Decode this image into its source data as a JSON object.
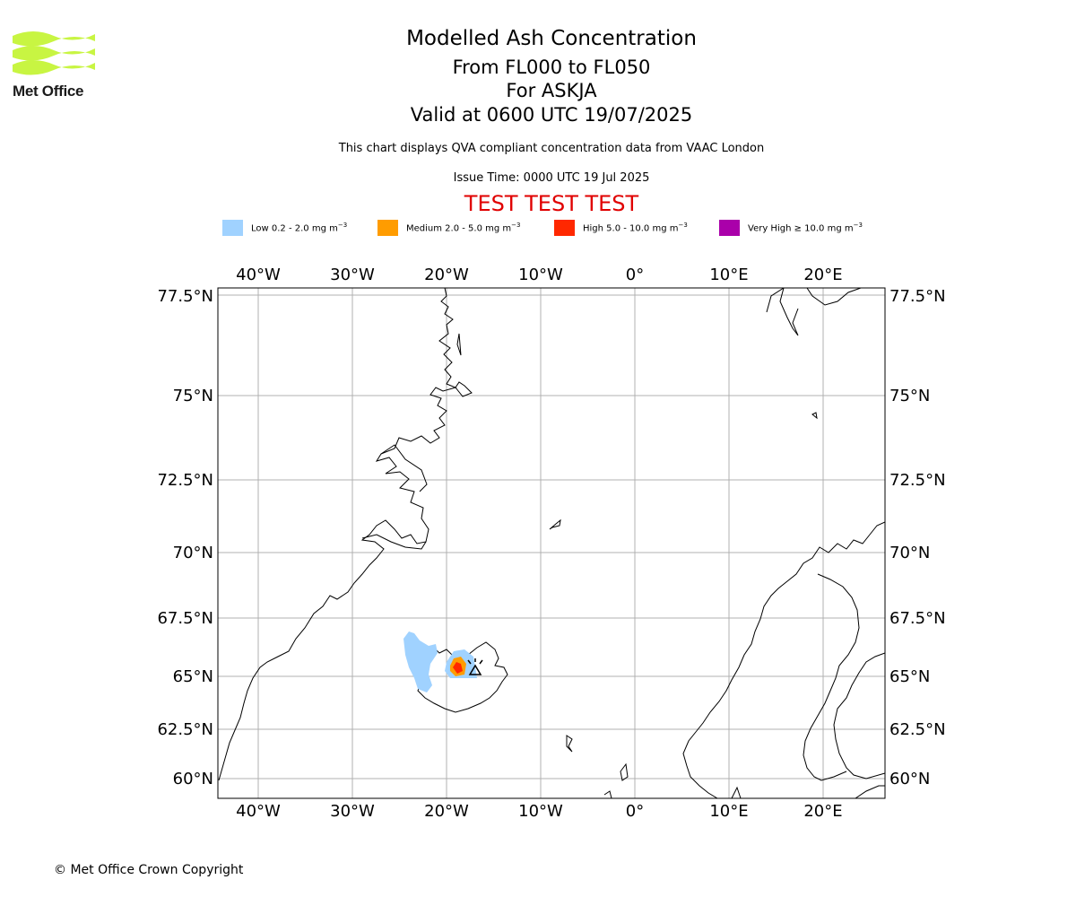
{
  "logo": {
    "text": "Met Office",
    "accent_color": "#c8f542"
  },
  "title": {
    "main": "Modelled Ash Concentration",
    "line1": "From FL000 to FL050",
    "line2": "For ASKJA",
    "line3": "Valid at 0600 UTC 19/07/2025"
  },
  "note": "This chart displays QVA compliant concentration data from VAAC London",
  "issue_time": "Issue Time: 0000 UTC 19 Jul 2025",
  "test_banner": "TEST TEST TEST",
  "legend": [
    {
      "label": "Low 0.2 - 2.0 mg m",
      "unit_exp": "−3",
      "color": "#a0d2ff"
    },
    {
      "label": "Medium 2.0 - 5.0 mg m",
      "unit_exp": "−3",
      "color": "#ff9c00"
    },
    {
      "label": "High 5.0 - 10.0 mg m",
      "unit_exp": "−3",
      "color": "#ff2800"
    },
    {
      "label": "Very High  ≥  10.0 mg m",
      "unit_exp": "−3",
      "color": "#aa00aa"
    }
  ],
  "map": {
    "lon_ticks": [
      "40°W",
      "30°W",
      "20°W",
      "10°W",
      "0°",
      "10°E",
      "20°E"
    ],
    "lat_ticks": [
      "77.5°N",
      "75°N",
      "72.5°N",
      "70°N",
      "67.5°N",
      "65°N",
      "62.5°N",
      "60°N"
    ]
  },
  "copyright": "© Met Office Crown Copyright"
}
